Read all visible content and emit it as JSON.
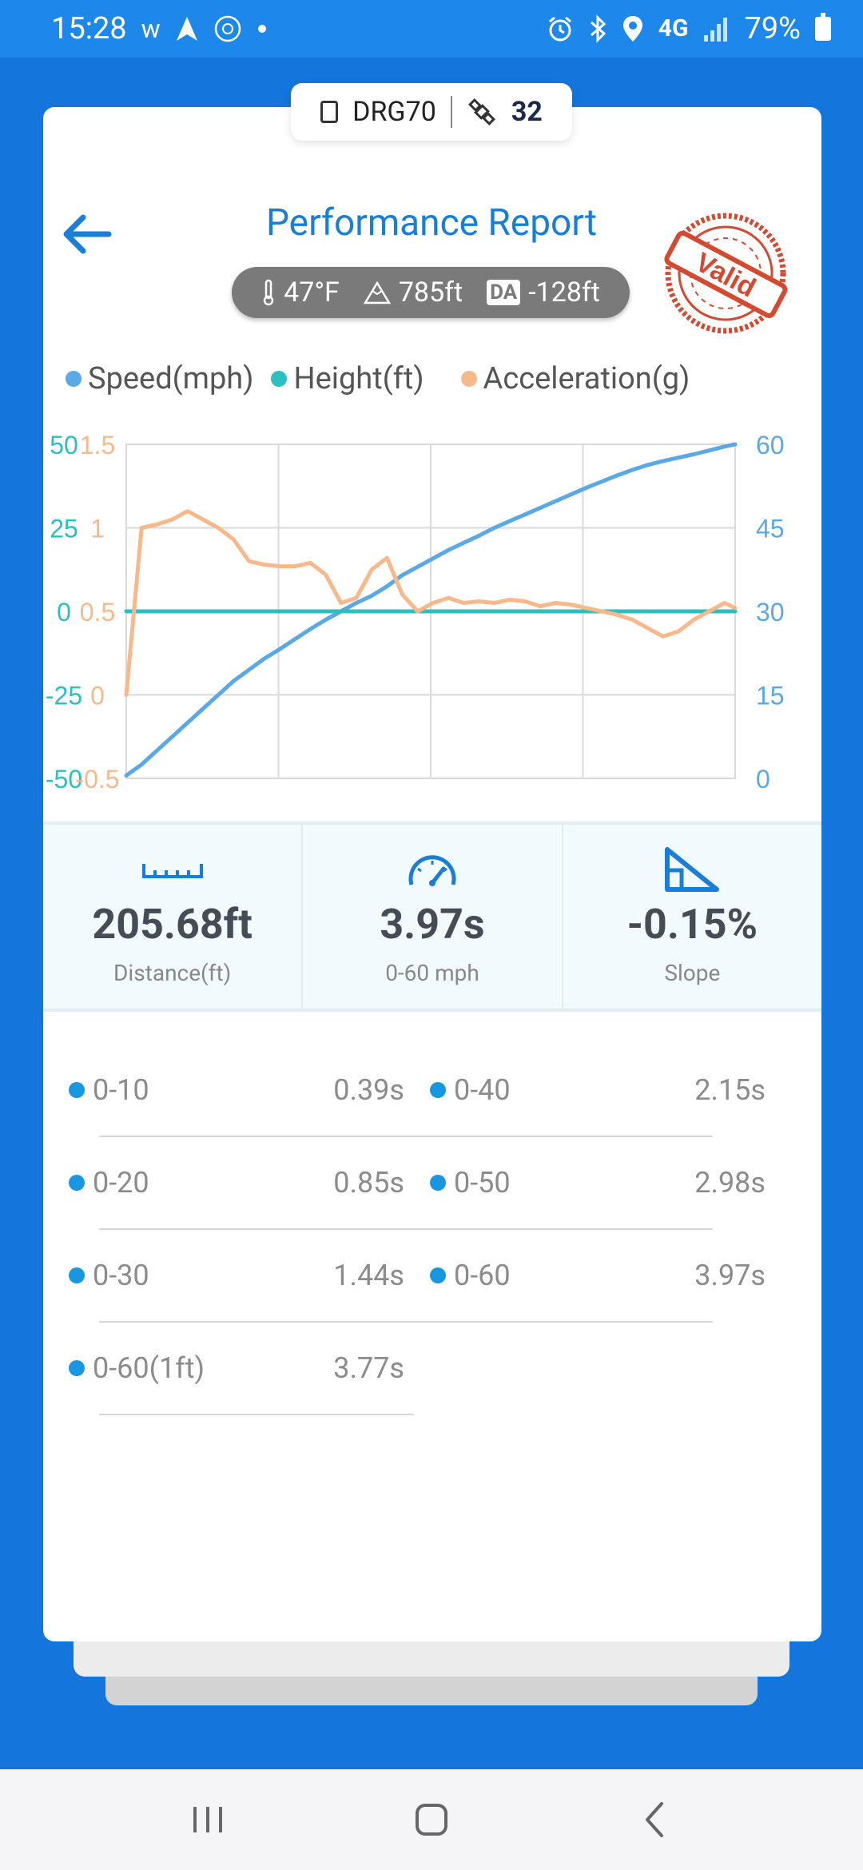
{
  "status_bar": {
    "time": "15:28",
    "left_icons": [
      "w",
      "navigation-arrow-icon",
      "app-badge-icon",
      "dot"
    ],
    "network": "4G",
    "battery": "79%"
  },
  "device": {
    "name": "DRG70",
    "satellites": "32"
  },
  "header": {
    "title": "Performance Report",
    "stamp_text": "Valid"
  },
  "conditions": {
    "temperature": "47°F",
    "elevation": "785ft",
    "da_label": "DA",
    "density_altitude": "-128ft"
  },
  "legend": [
    {
      "label": "Speed(mph)",
      "color": "#5aa9e6"
    },
    {
      "label": "Height(ft)",
      "color": "#2bbfc0"
    },
    {
      "label": "Acceleration(g)",
      "color": "#f7b98b"
    }
  ],
  "chart_data": {
    "type": "line",
    "x": [
      0,
      0.1,
      0.2,
      0.3,
      0.4,
      0.5,
      0.6,
      0.7,
      0.8,
      0.9,
      1.0,
      1.1,
      1.2,
      1.3,
      1.4,
      1.5,
      1.6,
      1.7,
      1.8,
      1.9,
      2.0,
      2.1,
      2.2,
      2.3,
      2.4,
      2.5,
      2.6,
      2.7,
      2.8,
      2.9,
      3.0,
      3.1,
      3.2,
      3.3,
      3.4,
      3.5,
      3.6,
      3.7,
      3.8,
      3.9,
      3.97
    ],
    "series": [
      {
        "name": "Speed(mph)",
        "axis": "right",
        "color": "#5aa9e6",
        "values": [
          0.5,
          2.5,
          5,
          7.5,
          10,
          12.5,
          15,
          17.5,
          19.5,
          21.5,
          23.2,
          25,
          26.8,
          28.5,
          30,
          31.5,
          32.8,
          34.5,
          36.5,
          38,
          39.5,
          41,
          42.3,
          43.6,
          45,
          46.2,
          47.4,
          48.6,
          49.8,
          51,
          52.2,
          53.3,
          54.4,
          55.4,
          56.3,
          57,
          57.6,
          58.2,
          58.9,
          59.6,
          60
        ]
      },
      {
        "name": "Height(ft)",
        "axis": "left_outer",
        "color": "#2bbfc0",
        "values": [
          0,
          0,
          0,
          0,
          0,
          0,
          0,
          0,
          0,
          0,
          0,
          0,
          0,
          0,
          0,
          0,
          0,
          0,
          0,
          0,
          0,
          0,
          0,
          0,
          0,
          0,
          0,
          0,
          0,
          0,
          0,
          0,
          0,
          0,
          0,
          0,
          0,
          0,
          0,
          0,
          0
        ]
      },
      {
        "name": "Acceleration(g)",
        "axis": "left_inner",
        "color": "#f7b98b",
        "values": [
          0,
          1.0,
          1.02,
          1.05,
          1.1,
          1.05,
          1.0,
          0.93,
          0.8,
          0.78,
          0.77,
          0.77,
          0.79,
          0.72,
          0.55,
          0.58,
          0.75,
          0.82,
          0.6,
          0.5,
          0.55,
          0.58,
          0.55,
          0.56,
          0.55,
          0.57,
          0.56,
          0.53,
          0.55,
          0.54,
          0.52,
          0.5,
          0.48,
          0.45,
          0.4,
          0.35,
          0.38,
          0.45,
          0.5,
          0.55,
          0.52
        ]
      }
    ],
    "axes": {
      "left_outer": {
        "ticks": [
          "50",
          "25",
          "0",
          "-25",
          "-50"
        ],
        "range": [
          -50,
          50
        ],
        "color": "#2bbfc0"
      },
      "left_inner": {
        "ticks": [
          "1.5",
          "1",
          "0.5",
          "0",
          "-0.5"
        ],
        "range": [
          -0.5,
          1.5
        ],
        "color": "#f7b98b"
      },
      "right": {
        "ticks": [
          "60",
          "45",
          "30",
          "15",
          "0"
        ],
        "range": [
          0,
          60
        ],
        "color": "#5aa9e6"
      }
    },
    "grid": true,
    "title": "",
    "xlabel": "",
    "ylabel": ""
  },
  "metrics": [
    {
      "value": "205.68ft",
      "label": "Distance(ft)",
      "icon": "ruler-icon"
    },
    {
      "value": "3.97s",
      "label": "0-60 mph",
      "icon": "speedometer-icon"
    },
    {
      "value": "-0.15%",
      "label": "Slope",
      "icon": "slope-icon"
    }
  ],
  "splits": [
    {
      "label": "0-10",
      "time": "0.39s"
    },
    {
      "label": "0-40",
      "time": "2.15s"
    },
    {
      "label": "0-20",
      "time": "0.85s"
    },
    {
      "label": "0-50",
      "time": "2.98s"
    },
    {
      "label": "0-30",
      "time": "1.44s"
    },
    {
      "label": "0-60",
      "time": "3.97s"
    },
    {
      "label": "0-60(1ft)",
      "time": "3.77s"
    }
  ]
}
